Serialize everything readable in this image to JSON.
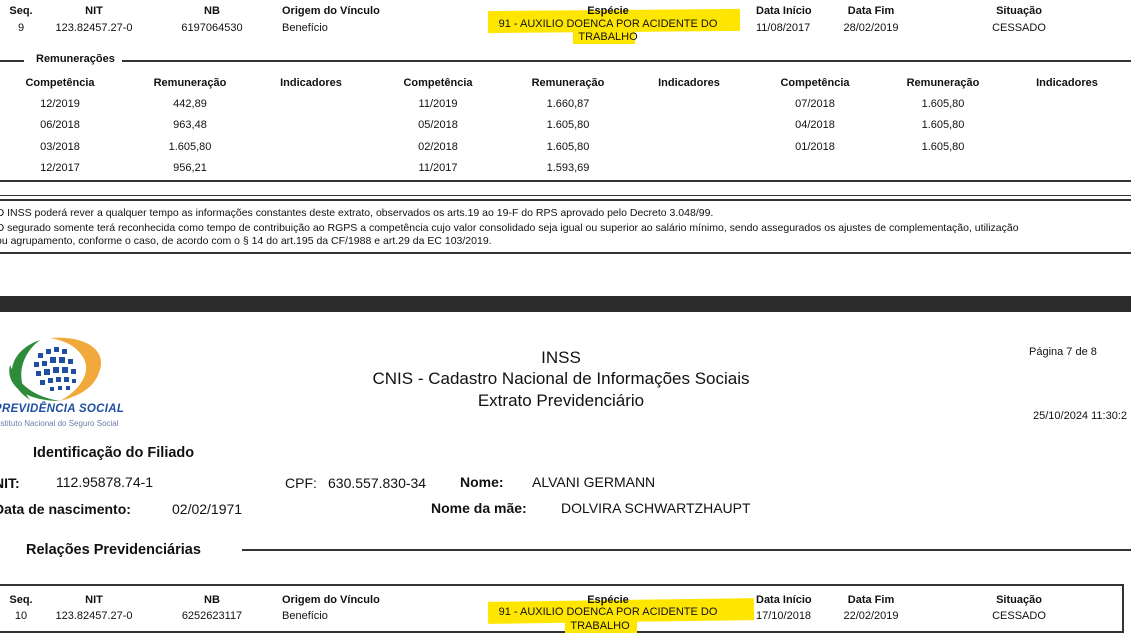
{
  "colors": {
    "highlight": "#ffe600",
    "page_separator": "#2b2b2b",
    "logo_green": "#2e8b3a",
    "logo_orange": "#f2a93b",
    "logo_blue": "#1f4fa3"
  },
  "record_headers": {
    "seq": "Seq.",
    "nit": "NIT",
    "nb": "NB",
    "origem": "Origem do Vínculo",
    "especie": "Espécie",
    "data_inicio": "Data Início",
    "data_fim": "Data Fim",
    "situacao": "Situação"
  },
  "record1": {
    "seq": "9",
    "nit": "123.82457.27-0",
    "nb": "6197064530",
    "origem": "Benefício",
    "especie_line1": "91 - AUXILIO DOENCA POR ACIDENTE DO",
    "especie_line2": "TRABALHO",
    "data_inicio": "11/08/2017",
    "data_fim": "28/02/2019",
    "situacao": "CESSADO"
  },
  "remuneracoes": {
    "title": "Remunerações",
    "headers": [
      "Competência",
      "Remuneração",
      "Indicadores",
      "Competência",
      "Remuneração",
      "Indicadores",
      "Competência",
      "Remuneração",
      "Indicadores"
    ],
    "rows": [
      [
        "12/2019",
        "442,89",
        "",
        "11/2019",
        "1.660,87",
        "",
        "07/2018",
        "1.605,80",
        ""
      ],
      [
        "06/2018",
        "963,48",
        "",
        "05/2018",
        "1.605,80",
        "",
        "04/2018",
        "1.605,80",
        ""
      ],
      [
        "03/2018",
        "1.605,80",
        "",
        "02/2018",
        "1.605,80",
        "",
        "01/2018",
        "1.605,80",
        ""
      ],
      [
        "12/2017",
        "956,21",
        "",
        "11/2017",
        "1.593,69",
        "",
        "",
        "",
        ""
      ]
    ]
  },
  "notes": [
    "O INSS poderá rever a qualquer tempo as informações constantes deste extrato, observados os arts.19 ao 19-F do RPS aprovado pelo Decreto 3.048/99.",
    "O segurado somente terá reconhecida como tempo de contribuição ao RGPS a competência cujo valor consolidado seja igual ou superior ao salário mínimo, sendo assegurados os ajustes de complementação, utilização",
    "ou agrupamento, conforme o caso, de acordo com o § 14 do art.195 da CF/1988 e art.29 da EC 103/2019."
  ],
  "page_header": {
    "logo_text": "PREVIDÊNCIA SOCIAL",
    "logo_subtext": "Instituto Nacional do Seguro Social",
    "title1": "INSS",
    "title2": "CNIS - Cadastro Nacional de Informações Sociais",
    "title3": "Extrato Previdenciário",
    "page": "Página 7 de 8",
    "datetime": "25/10/2024 11:30:2"
  },
  "filiado": {
    "section_title": "Identificação do Filiado",
    "nit_label": "NIT:",
    "nit": "112.95878.74-1",
    "cpf_label": "CPF:",
    "cpf": "630.557.830-34",
    "nome_label": "Nome:",
    "nome": "ALVANI GERMANN",
    "nasc_label": "Data de nascimento:",
    "nasc": "02/02/1971",
    "mae_label": "Nome da mãe:",
    "mae": "DOLVIRA SCHWARTZHAUPT"
  },
  "relacoes_title": "Relações Previdenciárias",
  "record2": {
    "seq": "10",
    "nit": "123.82457.27-0",
    "nb": "6252623117",
    "origem": "Benefício",
    "especie_line1": "91 - AUXILIO DOENCA POR ACIDENTE DO",
    "especie_line2": "TRABALHO",
    "data_inicio": "17/10/2018",
    "data_fim": "22/02/2019",
    "situacao": "CESSADO"
  }
}
